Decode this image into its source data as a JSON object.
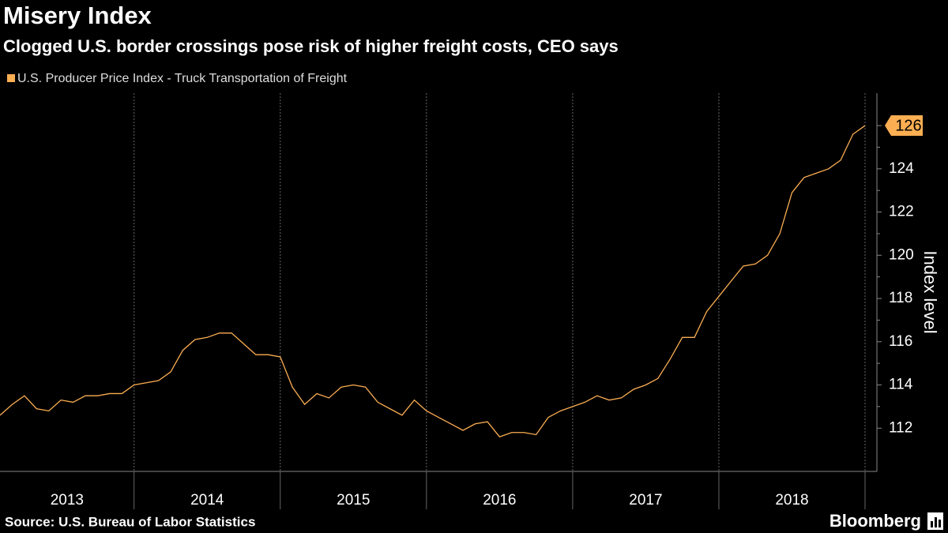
{
  "chart_data": {
    "type": "line",
    "title": "Misery Index",
    "subtitle": "Clogged U.S. border crossings pose risk of higher freight costs, CEO says",
    "y_axis_label": "Index level",
    "source": "Source: U.S. Bureau of Labor Statistics",
    "brand": "Bloomberg",
    "categories": [
      "2013",
      "2014",
      "2015",
      "2016",
      "2017",
      "2018"
    ],
    "x": [
      2013.083,
      2013.167,
      2013.25,
      2013.333,
      2013.417,
      2013.5,
      2013.583,
      2013.667,
      2013.75,
      2013.833,
      2013.917,
      2014,
      2014.083,
      2014.167,
      2014.25,
      2014.333,
      2014.417,
      2014.5,
      2014.583,
      2014.667,
      2014.75,
      2014.833,
      2014.917,
      2015,
      2015.083,
      2015.167,
      2015.25,
      2015.333,
      2015.417,
      2015.5,
      2015.583,
      2015.667,
      2015.75,
      2015.833,
      2015.917,
      2016,
      2016.083,
      2016.167,
      2016.25,
      2016.333,
      2016.417,
      2016.5,
      2016.583,
      2016.667,
      2016.75,
      2016.833,
      2016.917,
      2017,
      2017.083,
      2017.167,
      2017.25,
      2017.333,
      2017.417,
      2017.5,
      2017.583,
      2017.667,
      2017.75,
      2017.833,
      2017.917,
      2018,
      2018.083,
      2018.167,
      2018.25,
      2018.333,
      2018.417,
      2018.5,
      2018.583,
      2018.667,
      2018.75,
      2018.833,
      2018.917,
      2019
    ],
    "series": [
      {
        "name": "U.S. Producer Price Index - Truck Transportation of Freight",
        "color": "#fbae52",
        "values": [
          112.6,
          113.1,
          113.5,
          112.9,
          112.8,
          113.3,
          113.2,
          113.5,
          113.5,
          113.6,
          113.6,
          114.0,
          114.1,
          114.2,
          114.6,
          115.6,
          116.1,
          116.2,
          116.4,
          116.4,
          115.9,
          115.4,
          115.4,
          115.3,
          113.9,
          113.1,
          113.6,
          113.4,
          113.9,
          114.0,
          113.9,
          113.2,
          112.9,
          112.6,
          113.3,
          112.8,
          112.5,
          112.2,
          111.9,
          112.2,
          112.3,
          111.6,
          111.8,
          111.8,
          111.7,
          112.5,
          112.8,
          113.0,
          113.2,
          113.5,
          113.3,
          113.4,
          113.8,
          114.0,
          114.3,
          115.2,
          116.2,
          116.2,
          117.4,
          118.1,
          118.8,
          119.5,
          119.6,
          120.0,
          121.0,
          122.9,
          123.6,
          123.8,
          124.0,
          124.4,
          125.6,
          126
        ]
      }
    ],
    "label_last": true,
    "xlim": [
      2013.083,
      2019.081
    ],
    "xticks": [
      2014,
      2015,
      2016,
      2017,
      2018,
      2019
    ],
    "ylim": [
      110,
      127.5
    ],
    "yticks": [
      112,
      114,
      116,
      118,
      120,
      122,
      124,
      126
    ],
    "grid": true
  }
}
